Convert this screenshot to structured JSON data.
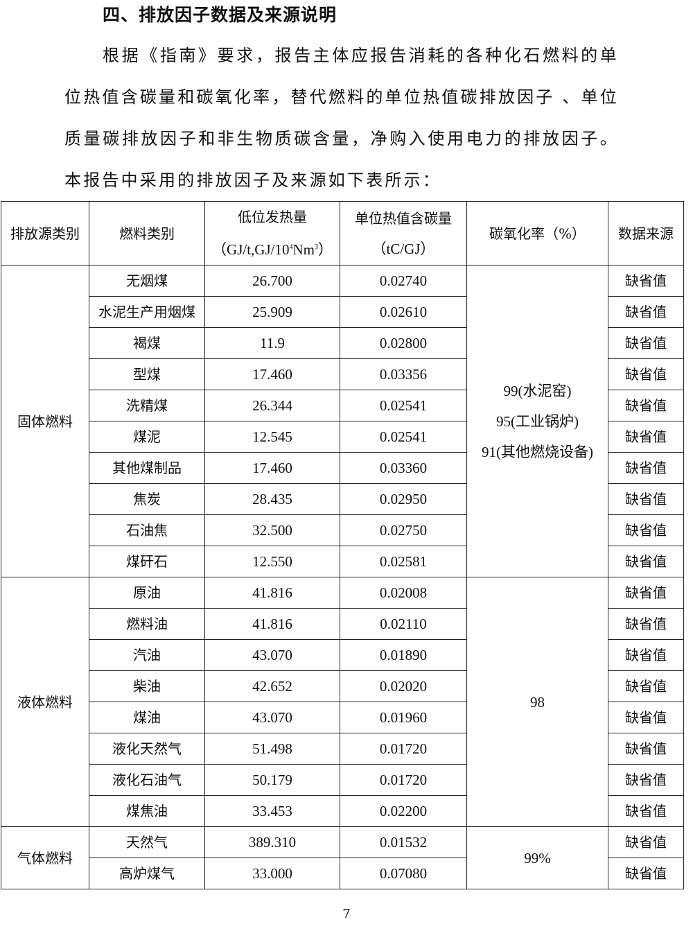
{
  "heading": "四、排放因子数据及来源说明",
  "paragraph": "根据《指南》要求，报告主体应报告消耗的各种化石燃料的单位热值含碳量和碳氧化率，替代燃料的单位热值碳排放因子 、单位质量碳排放因子和非生物质碳含量，净购入使用电力的排放因子。本报告中采用的排放因子及来源如下表所示：",
  "table": {
    "headers": {
      "source_category": "排放源类别",
      "fuel_type": "燃料类别",
      "ncv_label": "低位发热量",
      "ncv_unit_pre": "（GJ/t,GJ/10",
      "ncv_unit_sup1": "4",
      "ncv_unit_mid": "Nm",
      "ncv_unit_sup2": "3",
      "ncv_unit_post": "）",
      "carbon_label": "单位热值含碳量",
      "carbon_unit": "（tC/GJ）",
      "oxidation": "碳氧化率（%）",
      "data_source": "数据来源"
    },
    "groups": [
      {
        "category": "固体燃料",
        "oxidation_lines": [
          "99(水泥窑)",
          "95(工业锅炉)",
          "91(其他燃烧设备)"
        ],
        "rows": [
          {
            "fuel": "无烟煤",
            "ncv": "26.700",
            "carbon": "0.02740",
            "source": "缺省值"
          },
          {
            "fuel": "水泥生产用烟煤",
            "ncv": "25.909",
            "carbon": "0.02610",
            "source": "缺省值"
          },
          {
            "fuel": "褐煤",
            "ncv": "11.9",
            "carbon": "0.02800",
            "source": "缺省值"
          },
          {
            "fuel": "型煤",
            "ncv": "17.460",
            "carbon": "0.03356",
            "source": "缺省值"
          },
          {
            "fuel": "洗精煤",
            "ncv": "26.344",
            "carbon": "0.02541",
            "source": "缺省值"
          },
          {
            "fuel": "煤泥",
            "ncv": "12.545",
            "carbon": "0.02541",
            "source": "缺省值"
          },
          {
            "fuel": "其他煤制品",
            "ncv": "17.460",
            "carbon": "0.03360",
            "source": "缺省值"
          },
          {
            "fuel": "焦炭",
            "ncv": "28.435",
            "carbon": "0.02950",
            "source": "缺省值"
          },
          {
            "fuel": "石油焦",
            "ncv": "32.500",
            "carbon": "0.02750",
            "source": "缺省值"
          },
          {
            "fuel": "煤矸石",
            "ncv": "12.550",
            "carbon": "0.02581",
            "source": "缺省值"
          }
        ]
      },
      {
        "category": "液体燃料",
        "oxidation_lines": [
          "98"
        ],
        "rows": [
          {
            "fuel": "原油",
            "ncv": "41.816",
            "carbon": "0.02008",
            "source": "缺省值"
          },
          {
            "fuel": "燃料油",
            "ncv": "41.816",
            "carbon": "0.02110",
            "source": "缺省值"
          },
          {
            "fuel": "汽油",
            "ncv": "43.070",
            "carbon": "0.01890",
            "source": "缺省值"
          },
          {
            "fuel": "柴油",
            "ncv": "42.652",
            "carbon": "0.02020",
            "source": "缺省值"
          },
          {
            "fuel": "煤油",
            "ncv": "43.070",
            "carbon": "0.01960",
            "source": "缺省值"
          },
          {
            "fuel": "液化天然气",
            "ncv": "51.498",
            "carbon": "0.01720",
            "source": "缺省值"
          },
          {
            "fuel": "液化石油气",
            "ncv": "50.179",
            "carbon": "0.01720",
            "source": "缺省值"
          },
          {
            "fuel": "煤焦油",
            "ncv": "33.453",
            "carbon": "0.02200",
            "source": "缺省值"
          }
        ]
      },
      {
        "category": "气体燃料",
        "oxidation_lines": [
          "99%"
        ],
        "rows": [
          {
            "fuel": "天然气",
            "ncv": "389.310",
            "carbon": "0.01532",
            "source": "缺省值"
          },
          {
            "fuel": "高炉煤气",
            "ncv": "33.000",
            "carbon": "0.07080",
            "source": "缺省值"
          }
        ]
      }
    ]
  },
  "page_number": "7"
}
